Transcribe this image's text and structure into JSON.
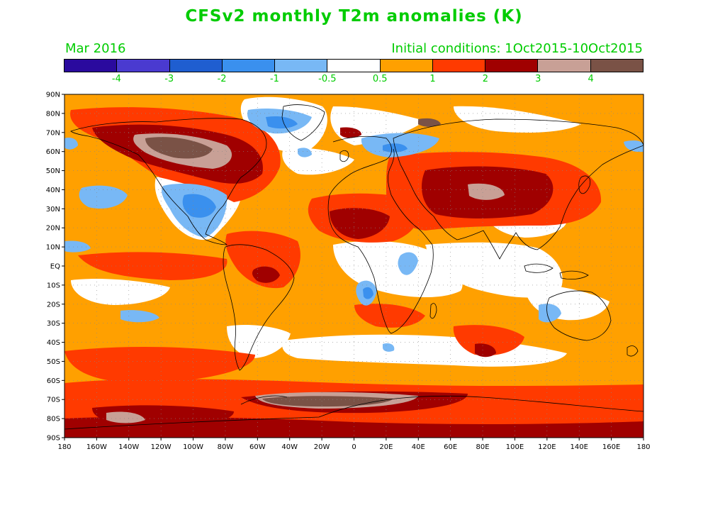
{
  "title": "CFSv2 monthly T2m anomalies (K)",
  "valid_month": "Mar 2016",
  "initial_conditions": "Initial conditions: 1Oct2015-10Oct2015",
  "colorbar": {
    "colors": [
      "#2a0a9e",
      "#4a3ad0",
      "#1f5ed0",
      "#3a90ee",
      "#78b8f5",
      "#ffffff",
      "#ffa000",
      "#ff3a00",
      "#a00000",
      "#c8a096",
      "#7a5246"
    ],
    "labels": [
      "-4",
      "-3",
      "-2",
      "-1",
      "-0.5",
      "0.5",
      "1",
      "2",
      "3",
      "4"
    ]
  },
  "map": {
    "lat_labels": [
      "90N",
      "80N",
      "70N",
      "60N",
      "50N",
      "40N",
      "30N",
      "20N",
      "10N",
      "EQ",
      "10S",
      "20S",
      "30S",
      "40S",
      "50S",
      "60S",
      "70S",
      "80S",
      "90S"
    ],
    "lon_labels": [
      "180",
      "160W",
      "140W",
      "120W",
      "100W",
      "80W",
      "60W",
      "40W",
      "20W",
      "0",
      "20E",
      "40E",
      "60E",
      "80E",
      "100E",
      "120E",
      "140E",
      "160E",
      "180"
    ]
  }
}
